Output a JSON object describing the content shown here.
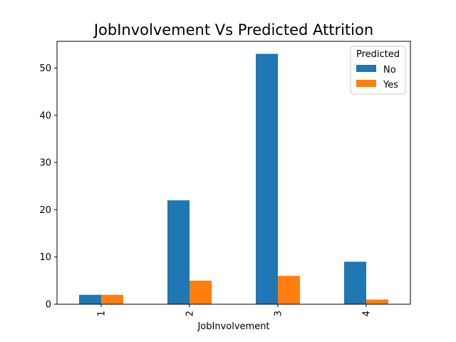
{
  "chart_data": {
    "type": "bar",
    "title": "JobInvolvement Vs Predicted Attrition",
    "xlabel": "JobInvolvement",
    "ylabel": "",
    "categories": [
      "1",
      "2",
      "3",
      "4"
    ],
    "ylim": [
      0,
      55.65
    ],
    "yticks": [
      0,
      10,
      20,
      30,
      40,
      50
    ],
    "grid": false,
    "legend": {
      "title": "Predicted",
      "placement": "top-right"
    },
    "series": [
      {
        "name": "No",
        "values": [
          2,
          22,
          53,
          9
        ],
        "color": "#1f77b4"
      },
      {
        "name": "Yes",
        "values": [
          2,
          5,
          6,
          1
        ],
        "color": "#ff7f0e"
      }
    ]
  }
}
